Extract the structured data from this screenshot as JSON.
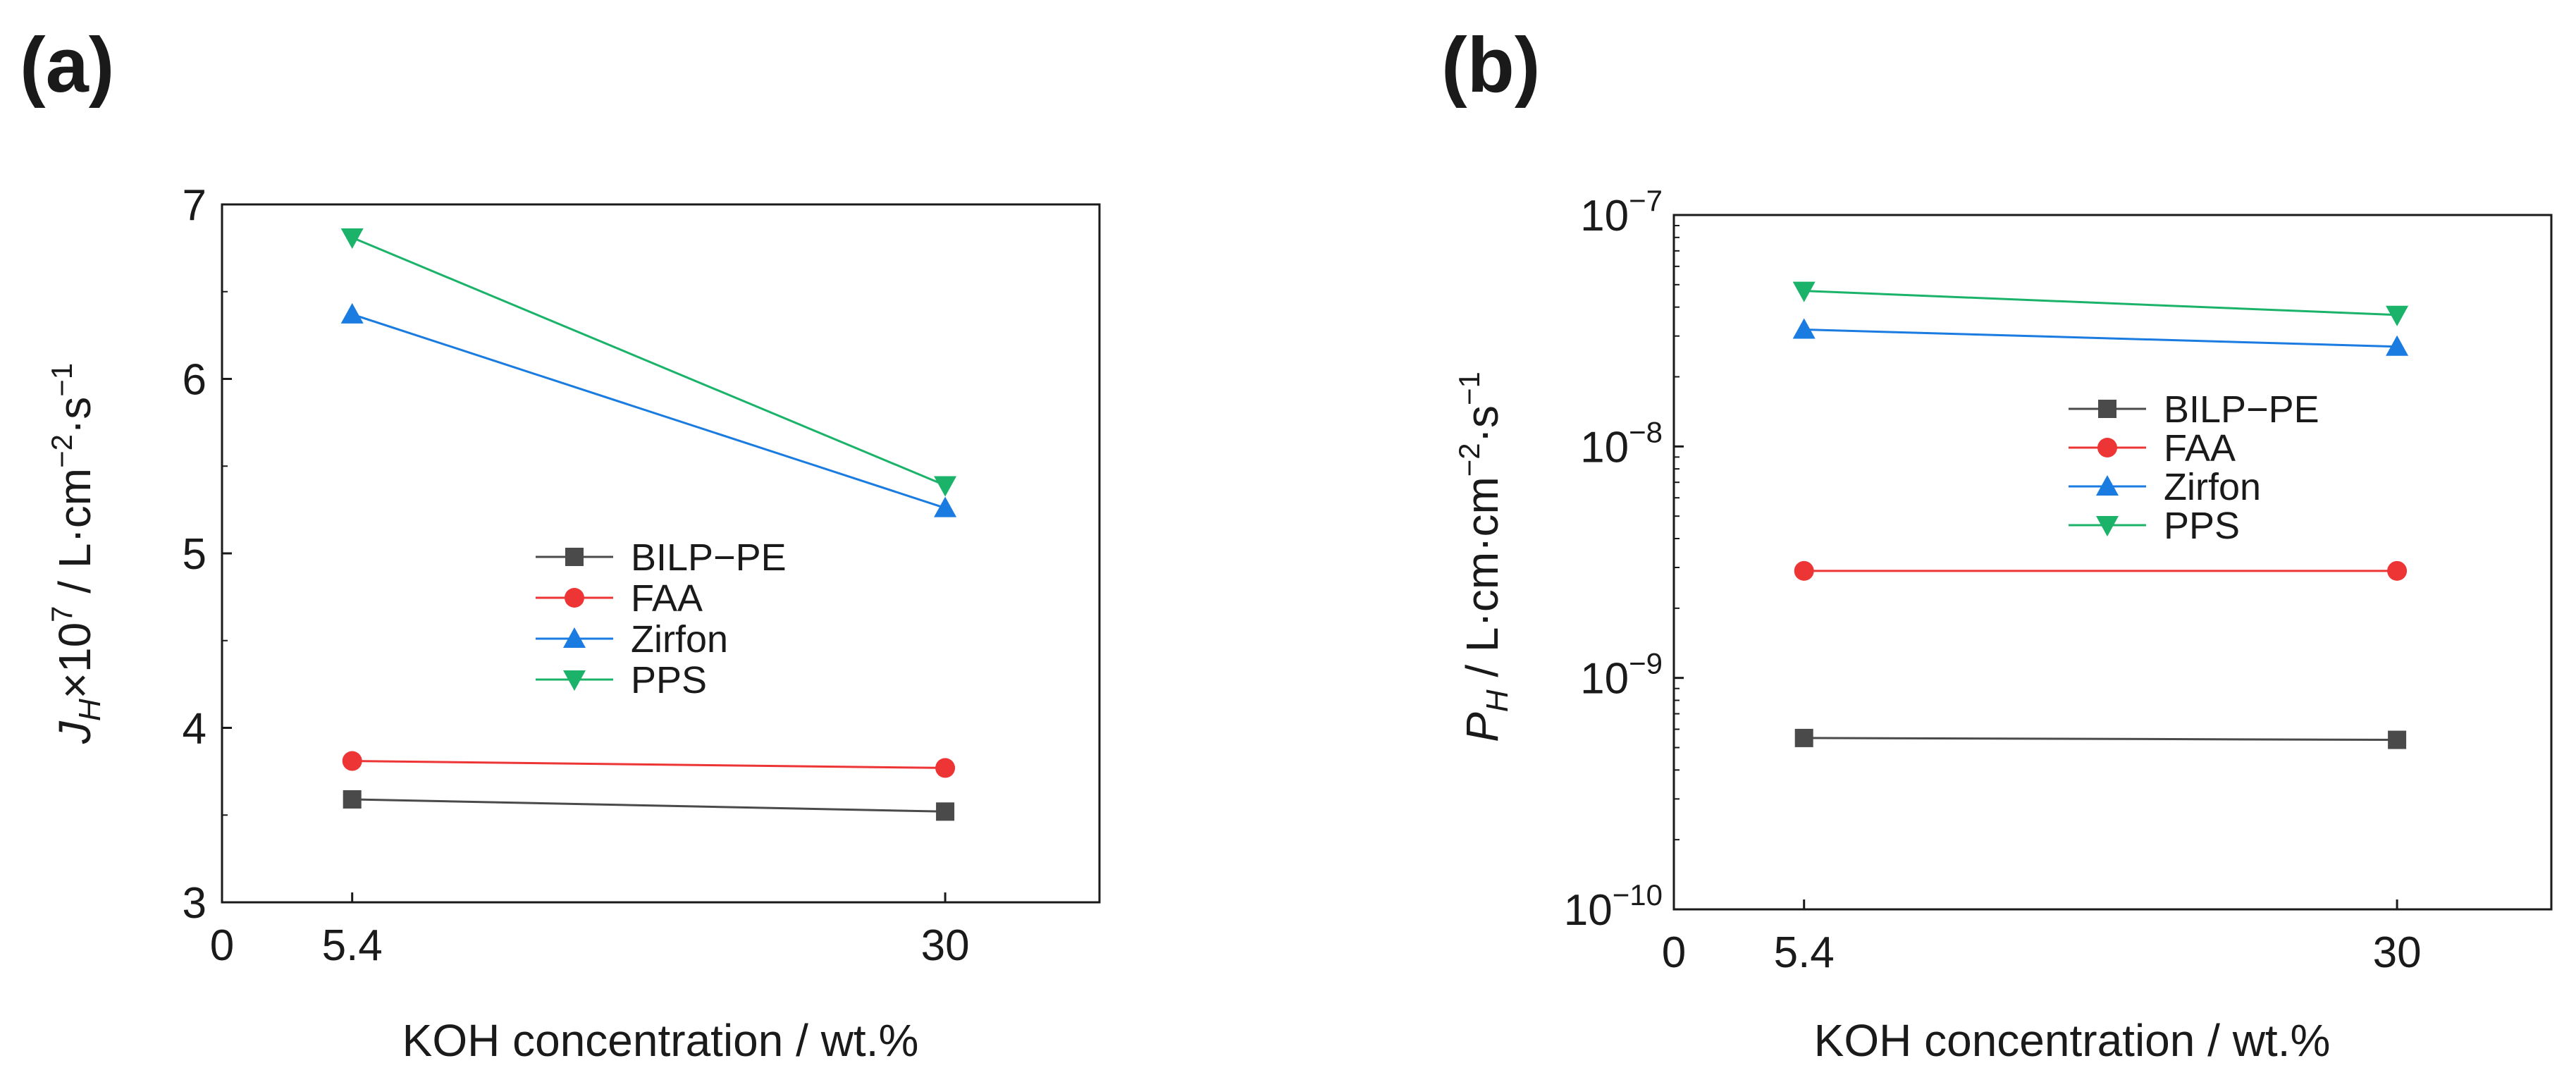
{
  "colors": {
    "BILP-PE": "#4a4a4a",
    "FAA": "#ee3535",
    "Zirfon": "#1a7be0",
    "PPS": "#1bb36a"
  },
  "chart_data": [
    {
      "panel": "(a)",
      "type": "line",
      "xlabel": "KOH concentration / wt.%",
      "ylabel_main": "J",
      "ylabel_sub": "H",
      "ylabel_rest": "×10",
      "ylabel_exp": "7",
      "ylabel_units": " / L·cm",
      "ylabel_units_exp": "−2",
      "ylabel_units2": "·s",
      "ylabel_units2_exp": "−1",
      "xlim": [
        0,
        36.4
      ],
      "xticks": [
        0,
        5.4,
        30
      ],
      "xtick_labels": [
        "0",
        "5.4",
        "30"
      ],
      "ylim": [
        3,
        7
      ],
      "yscale": "linear",
      "yticks": [
        3,
        4,
        5,
        6,
        7
      ],
      "ytick_labels": [
        "3",
        "4",
        "5",
        "6",
        "7"
      ],
      "legend": [
        "BILP−PE",
        "FAA",
        "Zirfon",
        "PPS"
      ],
      "series": [
        {
          "name": "BILP-PE",
          "label": "BILP−PE",
          "marker": "square",
          "x": [
            5.4,
            30
          ],
          "values": [
            3.59,
            3.52
          ]
        },
        {
          "name": "FAA",
          "label": "FAA",
          "marker": "circle",
          "x": [
            5.4,
            30
          ],
          "values": [
            3.81,
            3.77
          ]
        },
        {
          "name": "Zirfon",
          "label": "Zirfon",
          "marker": "triangle-up",
          "x": [
            5.4,
            30
          ],
          "values": [
            6.37,
            5.26
          ]
        },
        {
          "name": "PPS",
          "label": "PPS",
          "marker": "triangle-down",
          "x": [
            5.4,
            30
          ],
          "values": [
            6.81,
            5.39
          ]
        }
      ]
    },
    {
      "panel": "(b)",
      "type": "line",
      "xlabel": "KOH concentration / wt.%",
      "ylabel_main": "P",
      "ylabel_sub": "H",
      "ylabel_units": " / L·cm·cm",
      "ylabel_units_exp": "−2",
      "ylabel_units2": "·s",
      "ylabel_units2_exp": "−1",
      "xlim": [
        0,
        36.4
      ],
      "xticks": [
        0,
        5.4,
        30
      ],
      "xtick_labels": [
        "0",
        "5.4",
        "30"
      ],
      "ylim": [
        1e-10,
        1e-07
      ],
      "yscale": "log",
      "yticks": [
        1e-10,
        1e-09,
        1e-08,
        1e-07
      ],
      "ytick_base": "10",
      "ytick_exps": [
        "−10",
        "−9",
        "−8",
        "−7"
      ],
      "legend": [
        "BILP−PE",
        "FAA",
        "Zirfon",
        "PPS"
      ],
      "series": [
        {
          "name": "BILP-PE",
          "label": "BILP−PE",
          "marker": "square",
          "x": [
            5.4,
            30
          ],
          "values": [
            5.5e-10,
            5.4e-10
          ]
        },
        {
          "name": "FAA",
          "label": "FAA",
          "marker": "circle",
          "x": [
            5.4,
            30
          ],
          "values": [
            2.9e-09,
            2.9e-09
          ]
        },
        {
          "name": "Zirfon",
          "label": "Zirfon",
          "marker": "triangle-up",
          "x": [
            5.4,
            30
          ],
          "values": [
            3.2e-08,
            2.7e-08
          ]
        },
        {
          "name": "PPS",
          "label": "PPS",
          "marker": "triangle-down",
          "x": [
            5.4,
            30
          ],
          "values": [
            4.7e-08,
            3.7e-08
          ]
        }
      ]
    }
  ]
}
